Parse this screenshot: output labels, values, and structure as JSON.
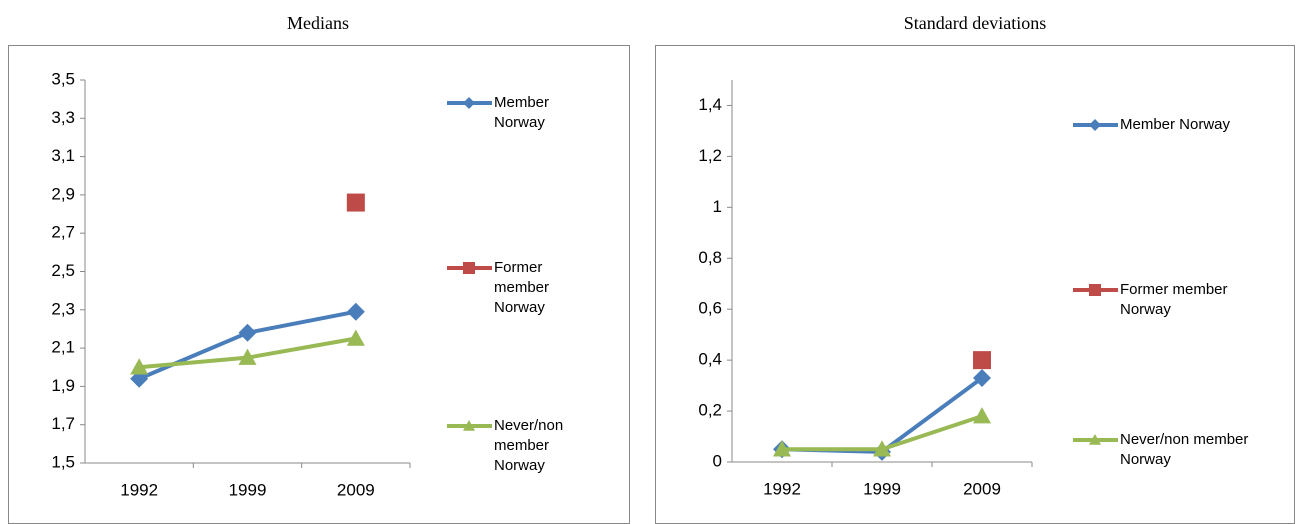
{
  "chart_data": [
    {
      "type": "line",
      "title": "Medians",
      "categories": [
        "1992",
        "1999",
        "2009"
      ],
      "series": [
        {
          "name": "Member Norway",
          "color": "#4a7ebb",
          "marker": "diamond",
          "values": [
            1.94,
            2.18,
            2.29
          ]
        },
        {
          "name": "Former member Norway",
          "color": "#be4b48",
          "marker": "square",
          "values": [
            null,
            null,
            2.86
          ]
        },
        {
          "name": "Never/non member Norway",
          "color": "#98b954",
          "marker": "triangle",
          "values": [
            2.0,
            2.05,
            2.15
          ]
        }
      ],
      "ylim": [
        1.5,
        3.5
      ],
      "yticks": [
        {
          "value": 1.5,
          "label": "1,5"
        },
        {
          "value": 1.7,
          "label": "1,7"
        },
        {
          "value": 1.9,
          "label": "1,9"
        },
        {
          "value": 2.1,
          "label": "2,1"
        },
        {
          "value": 2.3,
          "label": "2,3"
        },
        {
          "value": 2.5,
          "label": "2,5"
        },
        {
          "value": 2.7,
          "label": "2,7"
        },
        {
          "value": 2.9,
          "label": "2,9"
        },
        {
          "value": 3.1,
          "label": "3,1"
        },
        {
          "value": 3.3,
          "label": "3,3"
        },
        {
          "value": 3.5,
          "label": "3,5"
        }
      ],
      "legend": "right",
      "grid": false
    },
    {
      "type": "line",
      "title": "Standard deviations",
      "categories": [
        "1992",
        "1999",
        "2009"
      ],
      "series": [
        {
          "name": "Member Norway",
          "color": "#4a7ebb",
          "marker": "diamond",
          "values": [
            0.05,
            0.04,
            0.33
          ]
        },
        {
          "name": "Former member Norway",
          "color": "#be4b48",
          "marker": "square",
          "values": [
            null,
            null,
            0.4
          ]
        },
        {
          "name": "Never/non member Norway",
          "color": "#98b954",
          "marker": "triangle",
          "values": [
            0.05,
            0.05,
            0.18
          ]
        }
      ],
      "ylim": [
        0,
        1.5
      ],
      "yticks": [
        0,
        {
          "value": 0.2,
          "label": "0,2"
        },
        {
          "value": 0.4,
          "label": "0,4"
        },
        {
          "value": 0.6,
          "label": "0,6"
        },
        {
          "value": 0.8,
          "label": "0,8"
        },
        1,
        {
          "value": 1.2,
          "label": "1,2"
        },
        {
          "value": 1.4,
          "label": "1,4"
        }
      ],
      "legend": "right",
      "grid": false
    }
  ]
}
